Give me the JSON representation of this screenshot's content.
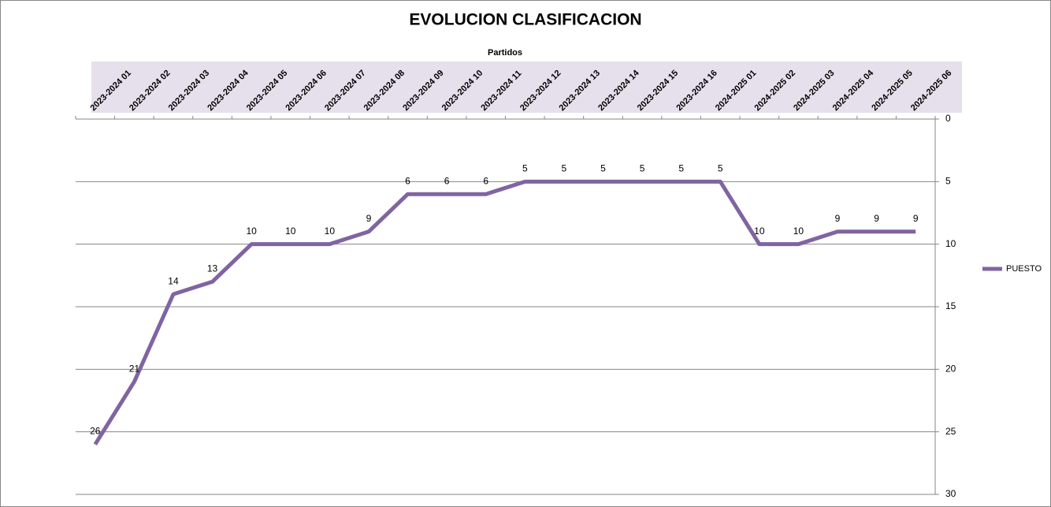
{
  "chart_data": {
    "type": "line",
    "title": "EVOLUCION CLASIFICACION",
    "x_label": "Partidos",
    "categories": [
      "2023-2024 01",
      "2023-2024 02",
      "2023-2024 03",
      "2023-2024 04",
      "2023-2024 05",
      "2023-2024 06",
      "2023-2024 07",
      "2023-2024 08",
      "2023-2024 09",
      "2023-2024 10",
      "2023-2024 11",
      "2023-2024 12",
      "2023-2024 13",
      "2023-2024 14",
      "2023-2024 15",
      "2023-2024 16",
      "2024-2025 01",
      "2024-2025 02",
      "2024-2025 03",
      "2024-2025 04",
      "2024-2025 05",
      "2024-2025 06"
    ],
    "series": [
      {
        "name": "PUESTO",
        "color": "#8064a2",
        "values": [
          26,
          21,
          14,
          13,
          10,
          10,
          10,
          9,
          6,
          6,
          6,
          5,
          5,
          5,
          5,
          5,
          5,
          10,
          10,
          9,
          9,
          9
        ]
      }
    ],
    "ylim": [
      0,
      30
    ],
    "yticks": [
      0,
      5,
      10,
      15,
      20,
      25,
      30
    ],
    "y_inverted": true,
    "grid": true,
    "legend": "right"
  }
}
